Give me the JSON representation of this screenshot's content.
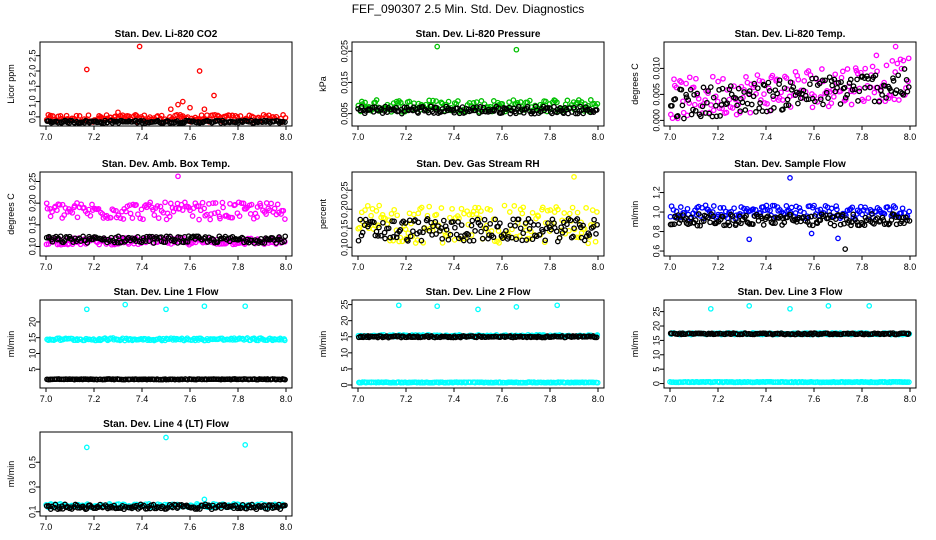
{
  "page_title": "FEF_090307  2.5 Min. Std. Dev. Diagnostics",
  "chart_data": [
    {
      "type": "scatter",
      "title": "Stan. Dev. Li-820 CO2",
      "xlabel": "",
      "ylabel": "Licor ppm",
      "xlim": [
        7.0,
        8.0
      ],
      "ylim": [
        0.3,
        2.85
      ],
      "xticks": [
        "7.0",
        "7.2",
        "7.4",
        "7.6",
        "7.8",
        "8.0"
      ],
      "yticks": [
        "0.5",
        "1.0",
        "1.5",
        "2.0",
        "2.5"
      ],
      "ytick_values": [
        0.5,
        1.0,
        1.5,
        2.0,
        2.5
      ],
      "series": [
        {
          "name": "red",
          "color": "#ff0000",
          "base": 0.45,
          "spread": 0.12,
          "outliers": [
            [
              7.17,
              2.05
            ],
            [
              7.39,
              2.8
            ],
            [
              7.64,
              2.0
            ],
            [
              7.7,
              1.2
            ],
            [
              7.55,
              0.9
            ],
            [
              7.57,
              1.0
            ],
            [
              7.52,
              0.75
            ],
            [
              7.6,
              0.8
            ],
            [
              7.66,
              0.75
            ],
            [
              7.3,
              0.65
            ]
          ]
        },
        {
          "name": "black",
          "color": "#000000",
          "base": 0.34,
          "spread": 0.04,
          "outliers": []
        }
      ]
    },
    {
      "type": "scatter",
      "title": "Stan. Dev. Li-820 Pressure",
      "xlabel": "",
      "ylabel": "kPa",
      "xlim": [
        7.0,
        8.0
      ],
      "ylim": [
        0.002,
        0.027
      ],
      "xticks": [
        "7.0",
        "7.2",
        "7.4",
        "7.6",
        "7.8",
        "8.0"
      ],
      "yticks": [
        "0.005",
        "0.015",
        "0.025"
      ],
      "ytick_values": [
        0.005,
        0.015,
        0.025
      ],
      "series": [
        {
          "name": "green",
          "color": "#00c000",
          "base": 0.0075,
          "spread": 0.002,
          "outliers": [
            [
              7.33,
              0.0265
            ],
            [
              7.66,
              0.0255
            ]
          ]
        },
        {
          "name": "black",
          "color": "#000000",
          "base": 0.0062,
          "spread": 0.0012,
          "outliers": []
        }
      ]
    },
    {
      "type": "scatter",
      "title": "Stan. Dev. Li-820 Temp.",
      "xlabel": "",
      "ylabel": "degrees C",
      "xlim": [
        7.0,
        8.0
      ],
      "ylim": [
        -0.0005,
        0.0145
      ],
      "xticks": [
        "7.0",
        "7.2",
        "7.4",
        "7.6",
        "7.8",
        "8.0"
      ],
      "yticks": [
        "0.000",
        "0.005",
        "0.010"
      ],
      "ytick_values": [
        0.0,
        0.005,
        0.01
      ],
      "series": [
        {
          "name": "magenta",
          "color": "#ff00ff",
          "base": 0.004,
          "spread": 0.004,
          "trend": 0.004,
          "outliers": [
            [
              7.94,
              0.0142
            ],
            [
              7.86,
              0.0125
            ]
          ]
        },
        {
          "name": "black",
          "color": "#000000",
          "base": 0.003,
          "spread": 0.003,
          "trend": 0.004,
          "outliers": []
        }
      ]
    },
    {
      "type": "scatter",
      "title": "Stan. Dev. Amb. Box Temp.",
      "xlabel": "",
      "ylabel": "degrees C",
      "xlim": [
        7.0,
        8.0
      ],
      "ylim": [
        0.085,
        0.265
      ],
      "xticks": [
        "7.0",
        "7.2",
        "7.4",
        "7.6",
        "7.8",
        "8.0"
      ],
      "yticks": [
        "0.10",
        "0.15",
        "0.20",
        "0.25"
      ],
      "ytick_values": [
        0.1,
        0.15,
        0.2,
        0.25
      ],
      "series": [
        {
          "name": "magenta-high",
          "color": "#ff00ff",
          "base": 0.182,
          "spread": 0.02,
          "outliers": [
            [
              7.55,
              0.262
            ]
          ]
        },
        {
          "name": "magenta-low",
          "color": "#ff00ff",
          "base": 0.112,
          "spread": 0.008,
          "outliers": []
        },
        {
          "name": "black",
          "color": "#000000",
          "base": 0.116,
          "spread": 0.008,
          "outliers": []
        }
      ]
    },
    {
      "type": "scatter",
      "title": "Stan. Dev. Gas Stream RH",
      "xlabel": "",
      "ylabel": "percent",
      "xlim": [
        7.0,
        8.0
      ],
      "ylim": [
        0.085,
        0.29
      ],
      "xticks": [
        "7.0",
        "7.2",
        "7.4",
        "7.6",
        "7.8",
        "8.0"
      ],
      "yticks": [
        "0.10",
        "0.15",
        "0.20",
        "0.25"
      ],
      "ytick_values": [
        0.1,
        0.15,
        0.2,
        0.25
      ],
      "series": [
        {
          "name": "yellow",
          "color": "#ffff00",
          "base": 0.16,
          "spread": 0.05,
          "outliers": [
            [
              7.9,
              0.285
            ]
          ]
        },
        {
          "name": "black",
          "color": "#000000",
          "base": 0.145,
          "spread": 0.03,
          "outliers": []
        }
      ]
    },
    {
      "type": "scatter",
      "title": "Stan. Dev. Sample Flow",
      "xlabel": "",
      "ylabel": "ml/min",
      "xlim": [
        7.0,
        8.0
      ],
      "ylim": [
        0.58,
        1.38
      ],
      "xticks": [
        "7.0",
        "7.2",
        "7.4",
        "7.6",
        "7.8",
        "8.0"
      ],
      "yticks": [
        "0.6",
        "0.8",
        "1.0",
        "1.2"
      ],
      "ytick_values": [
        0.6,
        0.8,
        1.0,
        1.2
      ],
      "series": [
        {
          "name": "blue",
          "color": "#0000ff",
          "base": 1.0,
          "spread": 0.07,
          "outliers": [
            [
              7.5,
              1.35
            ],
            [
              7.33,
              0.72
            ],
            [
              7.7,
              0.73
            ],
            [
              7.59,
              0.78
            ]
          ]
        },
        {
          "name": "black",
          "color": "#000000",
          "base": 0.92,
          "spread": 0.06,
          "outliers": [
            [
              7.73,
              0.62
            ]
          ]
        }
      ]
    },
    {
      "type": "scatter",
      "title": "Stan. Dev. Line 1 Flow",
      "xlabel": "",
      "ylabel": "ml/min",
      "xlim": [
        7.0,
        8.0
      ],
      "ylim": [
        0,
        26
      ],
      "xticks": [
        "7.0",
        "7.2",
        "7.4",
        "7.6",
        "7.8",
        "8.0"
      ],
      "yticks": [
        "5",
        "10",
        "15",
        "20"
      ],
      "ytick_values": [
        5,
        10,
        15,
        20
      ],
      "series": [
        {
          "name": "cyan",
          "color": "#00ffff",
          "base": 14.5,
          "spread": 0.4,
          "outliers": [
            [
              7.17,
              24
            ],
            [
              7.33,
              25.5
            ],
            [
              7.5,
              24
            ],
            [
              7.66,
              25
            ],
            [
              7.83,
              25
            ]
          ]
        },
        {
          "name": "black",
          "color": "#000000",
          "base": 1.8,
          "spread": 0.1,
          "outliers": []
        }
      ]
    },
    {
      "type": "scatter",
      "title": "Stan. Dev. Line 2 Flow",
      "xlabel": "",
      "ylabel": "ml/min",
      "xlim": [
        7.0,
        8.0
      ],
      "ylim": [
        0,
        25.5
      ],
      "xticks": [
        "7.0",
        "7.2",
        "7.4",
        "7.6",
        "7.8",
        "8.0"
      ],
      "yticks": [
        "0",
        "5",
        "10",
        "15",
        "20",
        "25"
      ],
      "ytick_values": [
        0,
        5,
        10,
        15,
        20,
        25
      ],
      "series": [
        {
          "name": "cyan-high",
          "color": "#00ffff",
          "base": 15.3,
          "spread": 0.3,
          "outliers": [
            [
              7.17,
              24.8
            ],
            [
              7.33,
              24.5
            ],
            [
              7.5,
              23.5
            ],
            [
              7.66,
              24.3
            ],
            [
              7.83,
              24.8
            ]
          ]
        },
        {
          "name": "cyan-low",
          "color": "#00ffff",
          "base": 0.8,
          "spread": 0.1,
          "outliers": []
        },
        {
          "name": "black",
          "color": "#000000",
          "base": 15.0,
          "spread": 0.25,
          "outliers": []
        }
      ]
    },
    {
      "type": "scatter",
      "title": "Stan. Dev. Line 3 Flow",
      "xlabel": "",
      "ylabel": "ml/min",
      "xlim": [
        7.0,
        8.0
      ],
      "ylim": [
        -0.5,
        28
      ],
      "xticks": [
        "7.0",
        "7.2",
        "7.4",
        "7.6",
        "7.8",
        "8.0"
      ],
      "yticks": [
        "0",
        "5",
        "10",
        "15",
        "20",
        "25"
      ],
      "ytick_values": [
        0,
        5,
        10,
        15,
        20,
        25
      ],
      "series": [
        {
          "name": "cyan-high",
          "color": "#00ffff",
          "base": 17.3,
          "spread": 0.3,
          "outliers": [
            [
              7.17,
              26
            ],
            [
              7.33,
              27
            ],
            [
              7.5,
              26
            ],
            [
              7.66,
              27
            ],
            [
              7.83,
              27
            ]
          ]
        },
        {
          "name": "cyan-low",
          "color": "#00ffff",
          "base": 0.5,
          "spread": 0.1,
          "outliers": []
        },
        {
          "name": "black",
          "color": "#000000",
          "base": 17.3,
          "spread": 0.25,
          "outliers": []
        }
      ]
    },
    {
      "type": "scatter",
      "title": "Stan. Dev. Line 4 (LT) Flow",
      "xlabel": "",
      "ylabel": "ml/min",
      "xlim": [
        7.0,
        8.0
      ],
      "ylim": [
        0.09,
        0.72
      ],
      "xticks": [
        "7.0",
        "7.2",
        "7.4",
        "7.6",
        "7.8",
        "8.0"
      ],
      "yticks": [
        "0.1",
        "0.3",
        "0.5"
      ],
      "ytick_values": [
        0.1,
        0.3,
        0.5
      ],
      "series": [
        {
          "name": "cyan",
          "color": "#00ffff",
          "base": 0.15,
          "spread": 0.015,
          "outliers": [
            [
              7.17,
              0.62
            ],
            [
              7.5,
              0.7
            ],
            [
              7.83,
              0.64
            ],
            [
              7.66,
              0.2
            ]
          ]
        },
        {
          "name": "black",
          "color": "#000000",
          "base": 0.14,
          "spread": 0.02,
          "outliers": []
        }
      ]
    }
  ]
}
